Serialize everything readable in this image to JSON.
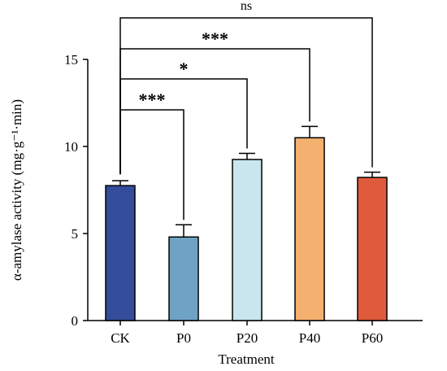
{
  "chart_data": {
    "type": "bar",
    "categories": [
      "CK",
      "P0",
      "P20",
      "P40",
      "P60"
    ],
    "values": [
      7.75,
      4.8,
      9.25,
      10.5,
      8.22
    ],
    "errors": [
      0.28,
      0.7,
      0.35,
      0.65,
      0.3
    ],
    "colors": [
      "#344d9a",
      "#6fa3c6",
      "#c9e6ee",
      "#f4b06e",
      "#e05a3c"
    ],
    "xlabel": "Treatment",
    "ylabel": "α-amylase activity (mg·g⁻¹·min)",
    "ylim": [
      0,
      15
    ],
    "yticks": [
      0,
      5,
      10,
      15
    ],
    "grid": false,
    "significance": [
      {
        "from": "CK",
        "to": "P0",
        "label": "***"
      },
      {
        "from": "CK",
        "to": "P20",
        "label": "*"
      },
      {
        "from": "CK",
        "to": "P40",
        "label": "***"
      },
      {
        "from": "CK",
        "to": "P60",
        "label": "ns"
      }
    ]
  }
}
